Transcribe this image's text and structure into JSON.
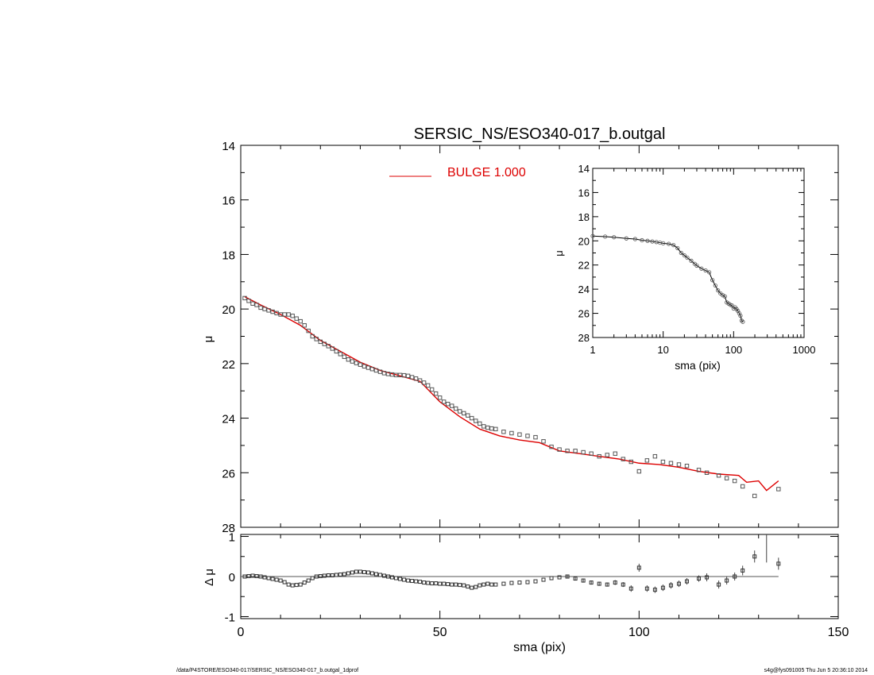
{
  "chart_data": [
    {
      "type": "scatter",
      "role": "main_profile",
      "title": "SERSIC_NS/ESO340-017_b.outgal",
      "xlabel": "",
      "ylabel": "μ",
      "xlim": [
        0,
        150
      ],
      "ylim": [
        28,
        14
      ],
      "y_inverted": true,
      "y_ticks": [
        14,
        16,
        18,
        20,
        22,
        24,
        26,
        28
      ],
      "legend": {
        "label": "BULGE  1.000",
        "color": "#dd0000",
        "position": "top-center"
      },
      "series": [
        {
          "name": "data",
          "marker": "square",
          "color": "#555555",
          "x": [
            1,
            2,
            3,
            4,
            5,
            6,
            7,
            8,
            9,
            10,
            11,
            12,
            13,
            14,
            15,
            16,
            17,
            18,
            19,
            20,
            21,
            22,
            23,
            24,
            25,
            26,
            27,
            28,
            29,
            30,
            31,
            32,
            33,
            34,
            35,
            36,
            37,
            38,
            39,
            40,
            41,
            42,
            43,
            44,
            45,
            46,
            47,
            48,
            49,
            50,
            51,
            52,
            53,
            54,
            55,
            56,
            57,
            58,
            59,
            60,
            61,
            62,
            63,
            64,
            66,
            68,
            70,
            72,
            74,
            76,
            78,
            80,
            82,
            84,
            86,
            88,
            90,
            92,
            94,
            96,
            98,
            100,
            102,
            104,
            106,
            108,
            110,
            112,
            115,
            117,
            120,
            122,
            124,
            126,
            129,
            135
          ],
          "y": [
            19.6,
            19.7,
            19.8,
            19.85,
            19.95,
            20.0,
            20.05,
            20.1,
            20.15,
            20.2,
            20.2,
            20.2,
            20.25,
            20.35,
            20.45,
            20.6,
            20.8,
            21.0,
            21.1,
            21.2,
            21.28,
            21.36,
            21.45,
            21.55,
            21.65,
            21.75,
            21.85,
            21.92,
            21.98,
            22.04,
            22.1,
            22.15,
            22.2,
            22.25,
            22.3,
            22.35,
            22.38,
            22.4,
            22.42,
            22.42,
            22.43,
            22.45,
            22.5,
            22.55,
            22.62,
            22.7,
            22.8,
            22.95,
            23.1,
            23.25,
            23.4,
            23.48,
            23.55,
            23.65,
            23.75,
            23.82,
            23.9,
            24.0,
            24.1,
            24.2,
            24.3,
            24.35,
            24.38,
            24.4,
            24.5,
            24.55,
            24.6,
            24.65,
            24.7,
            24.85,
            25.05,
            25.15,
            25.2,
            25.2,
            25.25,
            25.3,
            25.4,
            25.35,
            25.3,
            25.5,
            25.6,
            25.95,
            25.55,
            25.4,
            25.6,
            25.65,
            25.7,
            25.75,
            25.9,
            26.0,
            26.1,
            26.2,
            26.3,
            26.5,
            26.85,
            26.6
          ]
        }
      ],
      "model": {
        "name": "BULGE  1.000",
        "color": "#dd0000",
        "x": [
          1,
          5,
          10,
          15,
          20,
          25,
          30,
          35,
          40,
          45,
          50,
          55,
          60,
          65,
          70,
          75,
          80,
          85,
          90,
          95,
          100,
          105,
          110,
          115,
          120,
          125,
          127,
          130,
          132,
          135
        ],
        "y": [
          19.55,
          19.85,
          20.2,
          20.6,
          21.15,
          21.55,
          21.95,
          22.25,
          22.45,
          22.65,
          23.4,
          23.95,
          24.4,
          24.65,
          24.8,
          24.9,
          25.2,
          25.3,
          25.4,
          25.5,
          25.65,
          25.7,
          25.8,
          25.95,
          26.05,
          26.1,
          26.35,
          26.3,
          26.65,
          26.3
        ]
      }
    },
    {
      "type": "scatter",
      "role": "inset_log_profile",
      "xlabel": "sma (pix)",
      "ylabel": "μ",
      "x_scale": "log",
      "xlim": [
        1,
        1000
      ],
      "x_ticks": [
        "1",
        "10",
        "100",
        "1000"
      ],
      "ylim": [
        28,
        14
      ],
      "y_inverted": true,
      "y_ticks": [
        14,
        16,
        18,
        20,
        22,
        24,
        26,
        28
      ],
      "series": [
        {
          "name": "data",
          "x": [
            1,
            1.5,
            2,
            3,
            4,
            5,
            6,
            7,
            8,
            9,
            10,
            12,
            14,
            16,
            18,
            20,
            22,
            25,
            28,
            30,
            35,
            40,
            45,
            50,
            55,
            60,
            65,
            70,
            75,
            80,
            85,
            90,
            95,
            100,
            105,
            110,
            115,
            120,
            125,
            130,
            135
          ],
          "y": [
            19.6,
            19.65,
            19.7,
            19.8,
            19.85,
            19.95,
            20.0,
            20.05,
            20.1,
            20.15,
            20.2,
            20.25,
            20.35,
            20.6,
            21.0,
            21.2,
            21.4,
            21.65,
            21.9,
            22.05,
            22.3,
            22.45,
            22.6,
            23.25,
            23.7,
            24.1,
            24.35,
            24.5,
            24.6,
            25.1,
            25.2,
            25.3,
            25.35,
            25.6,
            25.5,
            25.65,
            25.8,
            26.0,
            26.2,
            26.6,
            26.7
          ]
        }
      ]
    },
    {
      "type": "scatter",
      "role": "residuals",
      "xlabel": "sma (pix)",
      "ylabel": "Δ μ",
      "xlim": [
        0,
        150
      ],
      "x_ticks": [
        0,
        50,
        100,
        150
      ],
      "ylim": [
        -1.05,
        1.05
      ],
      "y_ticks": [
        -1,
        0,
        1
      ],
      "zero_line": true,
      "series": [
        {
          "name": "residual",
          "x": [
            1,
            2,
            3,
            4,
            5,
            6,
            7,
            8,
            9,
            10,
            11,
            12,
            13,
            14,
            15,
            16,
            17,
            18,
            19,
            20,
            21,
            22,
            23,
            24,
            25,
            26,
            27,
            28,
            29,
            30,
            31,
            32,
            33,
            34,
            35,
            36,
            37,
            38,
            39,
            40,
            41,
            42,
            43,
            44,
            45,
            46,
            47,
            48,
            49,
            50,
            51,
            52,
            53,
            54,
            55,
            56,
            57,
            58,
            59,
            60,
            61,
            62,
            63,
            64,
            66,
            68,
            70,
            72,
            74,
            76,
            78,
            80,
            82,
            84,
            86,
            88,
            90,
            92,
            94,
            96,
            98,
            100,
            102,
            104,
            106,
            108,
            110,
            112,
            115,
            117,
            120,
            122,
            124,
            126,
            129,
            135
          ],
          "y": [
            0.0,
            0.01,
            0.02,
            0.01,
            0.0,
            -0.02,
            -0.04,
            -0.06,
            -0.08,
            -0.1,
            -0.14,
            -0.2,
            -0.22,
            -0.21,
            -0.2,
            -0.15,
            -0.1,
            -0.04,
            0.0,
            0.01,
            0.02,
            0.03,
            0.03,
            0.04,
            0.05,
            0.06,
            0.08,
            0.1,
            0.12,
            0.12,
            0.11,
            0.1,
            0.08,
            0.06,
            0.04,
            0.02,
            0.0,
            -0.02,
            -0.04,
            -0.06,
            -0.08,
            -0.1,
            -0.11,
            -0.12,
            -0.13,
            -0.15,
            -0.16,
            -0.17,
            -0.17,
            -0.18,
            -0.18,
            -0.19,
            -0.2,
            -0.2,
            -0.21,
            -0.22,
            -0.25,
            -0.28,
            -0.26,
            -0.22,
            -0.2,
            -0.18,
            -0.2,
            -0.2,
            -0.18,
            -0.16,
            -0.15,
            -0.14,
            -0.12,
            -0.08,
            -0.04,
            -0.02,
            0.0,
            -0.05,
            -0.1,
            -0.15,
            -0.18,
            -0.2,
            -0.15,
            -0.2,
            -0.3,
            0.22,
            -0.3,
            -0.33,
            -0.28,
            -0.22,
            -0.18,
            -0.12,
            -0.05,
            -0.02,
            -0.2,
            -0.1,
            0.0,
            0.15,
            0.5,
            0.32
          ],
          "errors": [
            0,
            0,
            0,
            0,
            0,
            0,
            0,
            0,
            0,
            0,
            0,
            0,
            0,
            0,
            0,
            0,
            0,
            0,
            0,
            0,
            0,
            0,
            0,
            0,
            0,
            0,
            0,
            0,
            0,
            0,
            0,
            0,
            0,
            0,
            0,
            0,
            0,
            0,
            0,
            0,
            0,
            0,
            0,
            0,
            0,
            0,
            0,
            0,
            0,
            0,
            0,
            0,
            0,
            0,
            0,
            0,
            0,
            0,
            0,
            0,
            0,
            0,
            0,
            0,
            0,
            0,
            0,
            0,
            0,
            0,
            0,
            0,
            0.05,
            0.05,
            0.05,
            0.05,
            0.05,
            0.05,
            0.06,
            0.06,
            0.08,
            0.1,
            0.08,
            0.08,
            0.08,
            0.08,
            0.08,
            0.08,
            0.08,
            0.1,
            0.1,
            0.1,
            0.1,
            0.12,
            0.15,
            0.15
          ]
        }
      ],
      "outlier_errorbar": {
        "x": 132,
        "y_top": 1.05,
        "y_bottom": 0.35
      }
    }
  ],
  "footer": {
    "left": "/data/P4STORE/ESO340-017/SERSIC_NS/ESO340-017_b.outgal_1dprof",
    "right": "s4g@fys091005  Thu Jun  5 20:36:10 2014"
  }
}
